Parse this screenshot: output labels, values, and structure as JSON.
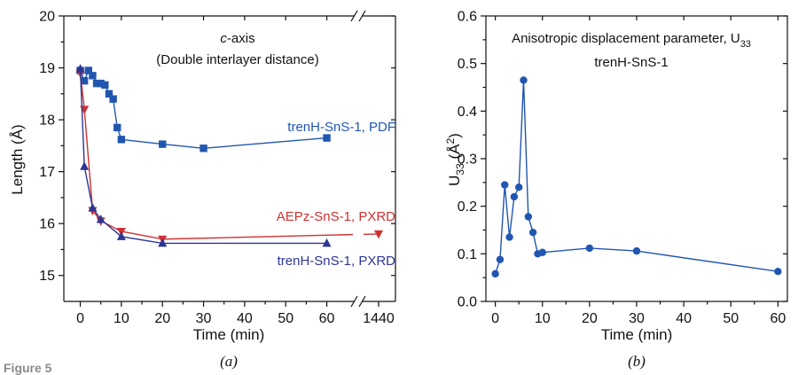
{
  "figure_label": "Figure 5",
  "colors": {
    "blue": "#2156b0",
    "red": "#d03030",
    "navy": "#2c3593",
    "axis": "#111111"
  },
  "chart_data": [
    {
      "type": "line",
      "panel_label": "(a)",
      "title_line1": "c-axis",
      "title_line2": "(Double interlayer distance)",
      "xlabel": "Time (min)",
      "ylabel": "Length (Å)",
      "ylim": [
        14.5,
        20
      ],
      "xlim": [
        -4,
        67
      ],
      "x_break": true,
      "break_tick": {
        "value": 1440,
        "label": "1440"
      },
      "xticks": [
        "0",
        "10",
        "20",
        "30",
        "40",
        "50",
        "60"
      ],
      "yticks": [
        "15",
        "16",
        "17",
        "18",
        "19",
        "20"
      ],
      "series": [
        {
          "name": "trenH-SnS-1, PDF",
          "color": "#2156b0",
          "marker": "square",
          "x": [
            0,
            1,
            2,
            3,
            4,
            5,
            6,
            7,
            8,
            9,
            10,
            20,
            30,
            60
          ],
          "y": [
            18.95,
            18.75,
            18.95,
            18.85,
            18.7,
            18.7,
            18.67,
            18.5,
            18.4,
            17.85,
            17.62,
            17.53,
            17.45,
            17.65
          ]
        },
        {
          "name": "AEPz-SnS-1, PXRD",
          "color": "#d03030",
          "marker": "triangle-down",
          "x": [
            0,
            1,
            3,
            5,
            10,
            20,
            1440
          ],
          "y": [
            18.9,
            18.2,
            16.25,
            16.05,
            15.85,
            15.7,
            15.8
          ]
        },
        {
          "name": "trenH-SnS-1, PXRD",
          "color": "#2c3593",
          "marker": "triangle-up",
          "x": [
            0,
            1,
            3,
            5,
            10,
            20,
            60
          ],
          "y": [
            18.98,
            17.1,
            16.3,
            16.08,
            15.75,
            15.62,
            15.62
          ]
        }
      ]
    },
    {
      "type": "line",
      "panel_label": "(b)",
      "title_line1": "Anisotropic displacement parameter, U",
      "title_line1_sub": "33",
      "title_line2": "trenH-SnS-1",
      "xlabel": "Time (min)",
      "ylabel_main": "U",
      "ylabel_sub": "33",
      "ylabel_rest": " (Å",
      "ylabel_sup": "2",
      "ylabel_end": ")",
      "ylim": [
        0,
        0.6
      ],
      "xlim": [
        -2,
        62
      ],
      "xticks": [
        "0",
        "10",
        "20",
        "30",
        "40",
        "50",
        "60"
      ],
      "yticks": [
        "0.0",
        "0.1",
        "0.2",
        "0.3",
        "0.4",
        "0.5",
        "0.6"
      ],
      "series": [
        {
          "name": "trenH-SnS-1",
          "color": "#2156b0",
          "marker": "circle",
          "x": [
            0,
            1,
            2,
            3,
            4,
            5,
            6,
            7,
            8,
            9,
            10,
            20,
            30,
            60
          ],
          "y": [
            0.058,
            0.088,
            0.245,
            0.135,
            0.22,
            0.24,
            0.465,
            0.178,
            0.145,
            0.1,
            0.103,
            0.112,
            0.106,
            0.063
          ]
        }
      ]
    }
  ]
}
